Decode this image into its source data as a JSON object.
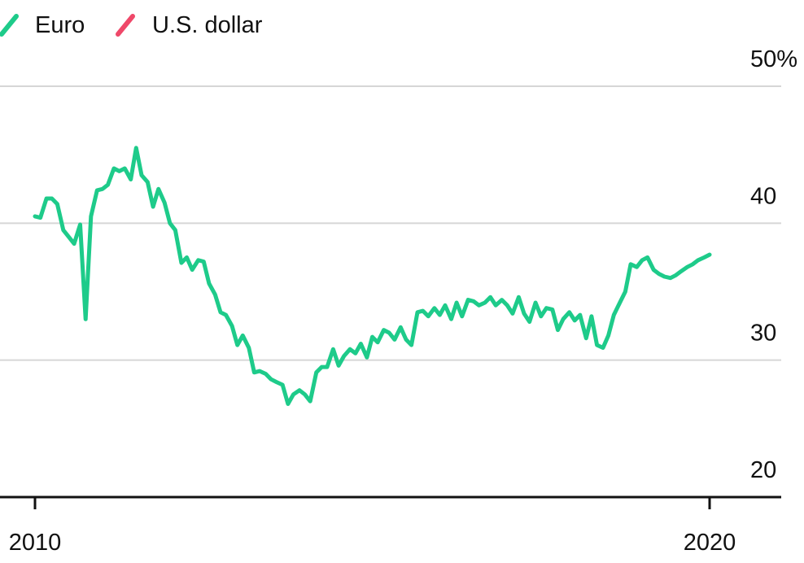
{
  "chart_data": {
    "type": "line",
    "title": "",
    "xlabel": "",
    "ylabel": "",
    "x_tick_labels": [
      "2010",
      "2020"
    ],
    "y_tick_labels": [
      "20",
      "30",
      "40",
      "50%"
    ],
    "y_ticks": [
      20,
      30,
      40,
      50
    ],
    "xlim": [
      2010,
      2020
    ],
    "ylim": [
      20,
      50
    ],
    "grid": true,
    "legend_position": "top-left",
    "series": [
      {
        "name": "Euro",
        "color": "#1ecb8a",
        "x": [
          2010.0,
          2010.08,
          2010.17,
          2010.25,
          2010.33,
          2010.42,
          2010.5,
          2010.58,
          2010.67,
          2010.75,
          2010.83,
          2010.92,
          2011.0,
          2011.08,
          2011.17,
          2011.25,
          2011.33,
          2011.42,
          2011.5,
          2011.58,
          2011.67,
          2011.75,
          2011.83,
          2011.92,
          2012.0,
          2012.08,
          2012.17,
          2012.25,
          2012.33,
          2012.42,
          2012.5,
          2012.58,
          2012.67,
          2012.75,
          2012.83,
          2012.92,
          2013.0,
          2013.08,
          2013.17,
          2013.25,
          2013.33,
          2013.42,
          2013.5,
          2013.58,
          2013.67,
          2013.75,
          2013.83,
          2013.92,
          2014.0,
          2014.08,
          2014.17,
          2014.25,
          2014.33,
          2014.42,
          2014.5,
          2014.58,
          2014.67,
          2014.75,
          2014.83,
          2014.92,
          2015.0,
          2015.08,
          2015.17,
          2015.25,
          2015.33,
          2015.42,
          2015.5,
          2015.58,
          2015.67,
          2015.75,
          2015.83,
          2015.92,
          2016.0,
          2016.08,
          2016.17,
          2016.25,
          2016.33,
          2016.42,
          2016.5,
          2016.58,
          2016.67,
          2016.75,
          2016.83,
          2016.92,
          2017.0,
          2017.08,
          2017.17,
          2017.25,
          2017.33,
          2017.42,
          2017.5,
          2017.58,
          2017.67,
          2017.75,
          2017.83,
          2017.92,
          2018.0,
          2018.08,
          2018.17,
          2018.25,
          2018.33,
          2018.42,
          2018.5,
          2018.58,
          2018.67,
          2018.75,
          2018.83,
          2018.92,
          2019.0,
          2019.08,
          2019.17,
          2019.25,
          2019.33,
          2019.42,
          2019.5,
          2019.58,
          2019.67,
          2019.75,
          2019.83,
          2019.92,
          2020.0
        ],
        "values": [
          40.5,
          40.4,
          41.8,
          41.8,
          41.4,
          39.5,
          39.0,
          38.5,
          39.9,
          33.0,
          40.5,
          42.4,
          42.5,
          42.8,
          44.0,
          43.8,
          44.0,
          43.2,
          45.5,
          43.5,
          43.0,
          41.2,
          42.5,
          41.5,
          40.0,
          39.5,
          37.1,
          37.5,
          36.6,
          37.3,
          37.2,
          35.6,
          34.8,
          33.5,
          33.3,
          32.5,
          31.1,
          31.8,
          30.9,
          29.1,
          29.2,
          29.0,
          28.6,
          28.4,
          28.2,
          26.8,
          27.5,
          27.8,
          27.5,
          27.0,
          29.1,
          29.5,
          29.5,
          30.8,
          29.6,
          30.3,
          30.8,
          30.5,
          31.2,
          30.2,
          31.7,
          31.3,
          32.2,
          32.0,
          31.5,
          32.4,
          31.5,
          31.1,
          33.5,
          33.6,
          33.2,
          33.8,
          33.3,
          34.0,
          33.0,
          34.2,
          33.2,
          34.4,
          34.3,
          34.0,
          34.2,
          34.6,
          34.0,
          34.4,
          34.0,
          33.4,
          34.6,
          33.4,
          32.8,
          34.2,
          33.2,
          33.8,
          33.7,
          32.2,
          33.0,
          33.5,
          32.9,
          33.3,
          31.6,
          33.2,
          31.1,
          30.9,
          31.8,
          33.3,
          34.2,
          35.0,
          37.0,
          36.8,
          37.3,
          37.5,
          36.6,
          36.3,
          36.1,
          36.0,
          36.2,
          36.5,
          36.8,
          37.0,
          37.3,
          37.5,
          37.7
        ],
        "values_note": ""
      },
      {
        "name": "U.S. dollar",
        "color": "#ef4869",
        "x": [],
        "values": []
      }
    ]
  },
  "legend": {
    "items": [
      {
        "label": "Euro",
        "color": "#1ecb8a",
        "icon": "line-slash-icon"
      },
      {
        "label": "U.S. dollar",
        "color": "#ef4869",
        "icon": "line-slash-icon"
      }
    ]
  }
}
